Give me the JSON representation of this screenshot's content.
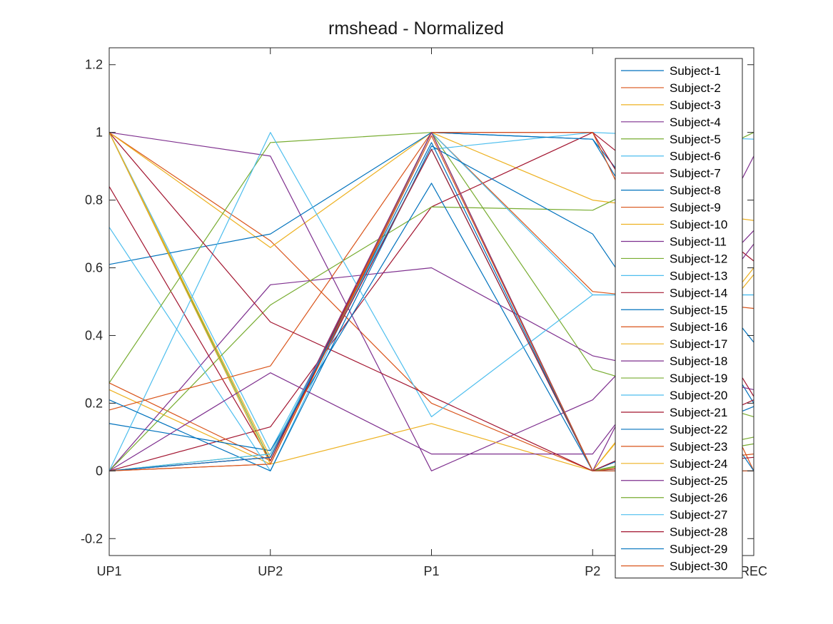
{
  "chart_data": {
    "type": "line",
    "title": "rmshead - Normalized",
    "xlabel": "",
    "ylabel": "",
    "categories": [
      "UP1",
      "UP2",
      "P1",
      "P2",
      "REC"
    ],
    "ylim": [
      -0.25,
      1.25
    ],
    "yticks": [
      -0.2,
      0,
      0.2,
      0.4,
      0.6,
      0.8,
      1,
      1.2
    ],
    "ytick_labels": [
      "-0.2",
      "0",
      "0.2",
      "0.4",
      "0.6",
      "0.8",
      "1",
      "1.2"
    ],
    "grid": false,
    "legend_position": "top-right",
    "colors": [
      "#0072BD",
      "#D95319",
      "#EDB120",
      "#7E2F8E",
      "#77AC30",
      "#4DBEEE",
      "#A2142F"
    ],
    "series": [
      {
        "name": "Subject-1",
        "values": [
          1.0,
          0.02,
          1.0,
          0.98,
          0.38
        ]
      },
      {
        "name": "Subject-2",
        "values": [
          1.0,
          0.68,
          0.2,
          0.0,
          0.0
        ]
      },
      {
        "name": "Subject-3",
        "values": [
          1.0,
          0.66,
          1.0,
          0.8,
          0.74
        ]
      },
      {
        "name": "Subject-4",
        "values": [
          1.0,
          0.93,
          0.0,
          0.21,
          0.71
        ]
      },
      {
        "name": "Subject-5",
        "values": [
          1.0,
          0.03,
          1.0,
          0.3,
          0.16
        ]
      },
      {
        "name": "Subject-6",
        "values": [
          1.0,
          0.06,
          0.95,
          1.0,
          0.98
        ]
      },
      {
        "name": "Subject-7",
        "values": [
          0.0,
          0.13,
          0.78,
          1.0,
          0.62
        ]
      },
      {
        "name": "Subject-8",
        "values": [
          0.61,
          0.7,
          1.0,
          0.98,
          0.2
        ]
      },
      {
        "name": "Subject-9",
        "values": [
          0.26,
          0.03,
          1.0,
          0.53,
          0.48
        ]
      },
      {
        "name": "Subject-10",
        "values": [
          0.24,
          0.02,
          0.14,
          0.0,
          0.6
        ]
      },
      {
        "name": "Subject-11",
        "values": [
          0.0,
          0.55,
          0.6,
          0.34,
          0.24
        ]
      },
      {
        "name": "Subject-12",
        "values": [
          0.0,
          0.49,
          0.78,
          0.77,
          1.0
        ]
      },
      {
        "name": "Subject-13",
        "values": [
          0.72,
          0.0,
          1.0,
          0.52,
          0.52
        ]
      },
      {
        "name": "Subject-14",
        "values": [
          0.84,
          0.03,
          1.0,
          1.0,
          0.22
        ]
      },
      {
        "name": "Subject-15",
        "values": [
          0.14,
          0.06,
          0.85,
          0.0,
          0.19
        ]
      },
      {
        "name": "Subject-16",
        "values": [
          0.18,
          0.31,
          1.0,
          1.0,
          0.0
        ]
      },
      {
        "name": "Subject-17",
        "values": [
          1.0,
          0.02,
          1.0,
          0.0,
          0.58
        ]
      },
      {
        "name": "Subject-18",
        "values": [
          0.0,
          0.29,
          0.05,
          0.05,
          0.67
        ]
      },
      {
        "name": "Subject-19",
        "values": [
          0.26,
          0.97,
          1.0,
          0.0,
          0.1
        ]
      },
      {
        "name": "Subject-20",
        "values": [
          0.0,
          1.0,
          0.16,
          0.52,
          0.52
        ]
      },
      {
        "name": "Subject-21",
        "values": [
          1.0,
          0.44,
          0.22,
          0.0,
          0.04
        ]
      },
      {
        "name": "Subject-22",
        "values": [
          0.21,
          0.0,
          0.96,
          0.7,
          0.0
        ]
      },
      {
        "name": "Subject-23",
        "values": [
          0.0,
          0.02,
          1.0,
          0.0,
          0.05
        ]
      },
      {
        "name": "Subject-24",
        "values": [
          1.0,
          0.04,
          1.0,
          0.0,
          0.0
        ]
      },
      {
        "name": "Subject-25",
        "values": [
          0.0,
          0.04,
          1.0,
          0.0,
          0.93
        ]
      },
      {
        "name": "Subject-26",
        "values": [
          0.0,
          0.05,
          0.95,
          0.0,
          0.08
        ]
      },
      {
        "name": "Subject-27",
        "values": [
          0.0,
          0.05,
          0.95,
          0.0,
          0.0
        ]
      },
      {
        "name": "Subject-28",
        "values": [
          0.0,
          0.04,
          0.95,
          0.0,
          0.21
        ]
      },
      {
        "name": "Subject-29",
        "values": [
          0.0,
          0.04,
          0.97,
          0.0,
          0.0
        ]
      },
      {
        "name": "Subject-30",
        "values": [
          0.0,
          0.02,
          0.99,
          0.0,
          0.0
        ]
      }
    ]
  }
}
